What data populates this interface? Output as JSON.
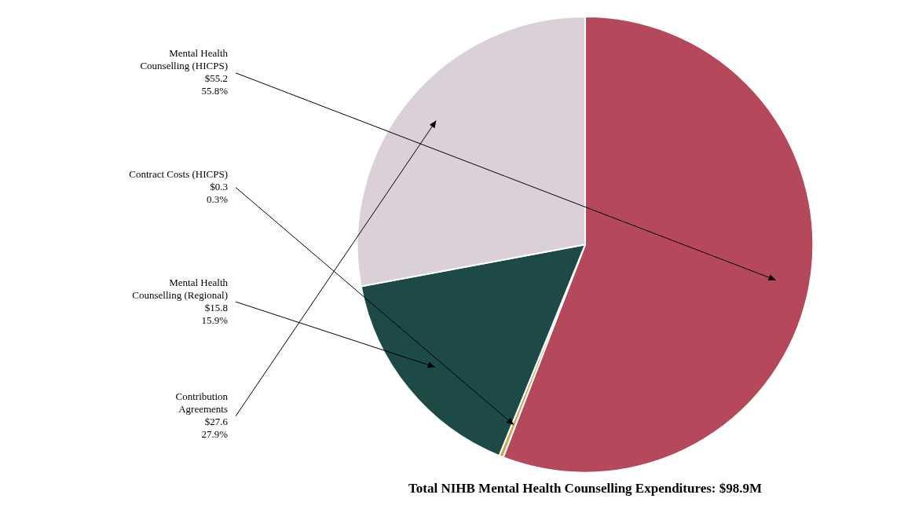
{
  "chart_data": {
    "type": "pie",
    "title": "Total NIHB Mental Health Counselling Expenditures: $98.9M",
    "categories": [
      "Mental Health\nCounselling (HICPS)\n$55.2\n55.8%",
      "Contract Costs (HICPS)\n$0.3\n0.3%",
      "Mental Health\nCounselling (Regional)\n$15.8\n15.9%",
      "Contribution\nAgreements\n$27.6\n27.9%"
    ],
    "values": [
      55.8,
      0.3,
      15.9,
      27.9
    ],
    "colors": [
      "#b5485a",
      "#c8a951",
      "#1d4a47",
      "#dbd0d8"
    ]
  }
}
